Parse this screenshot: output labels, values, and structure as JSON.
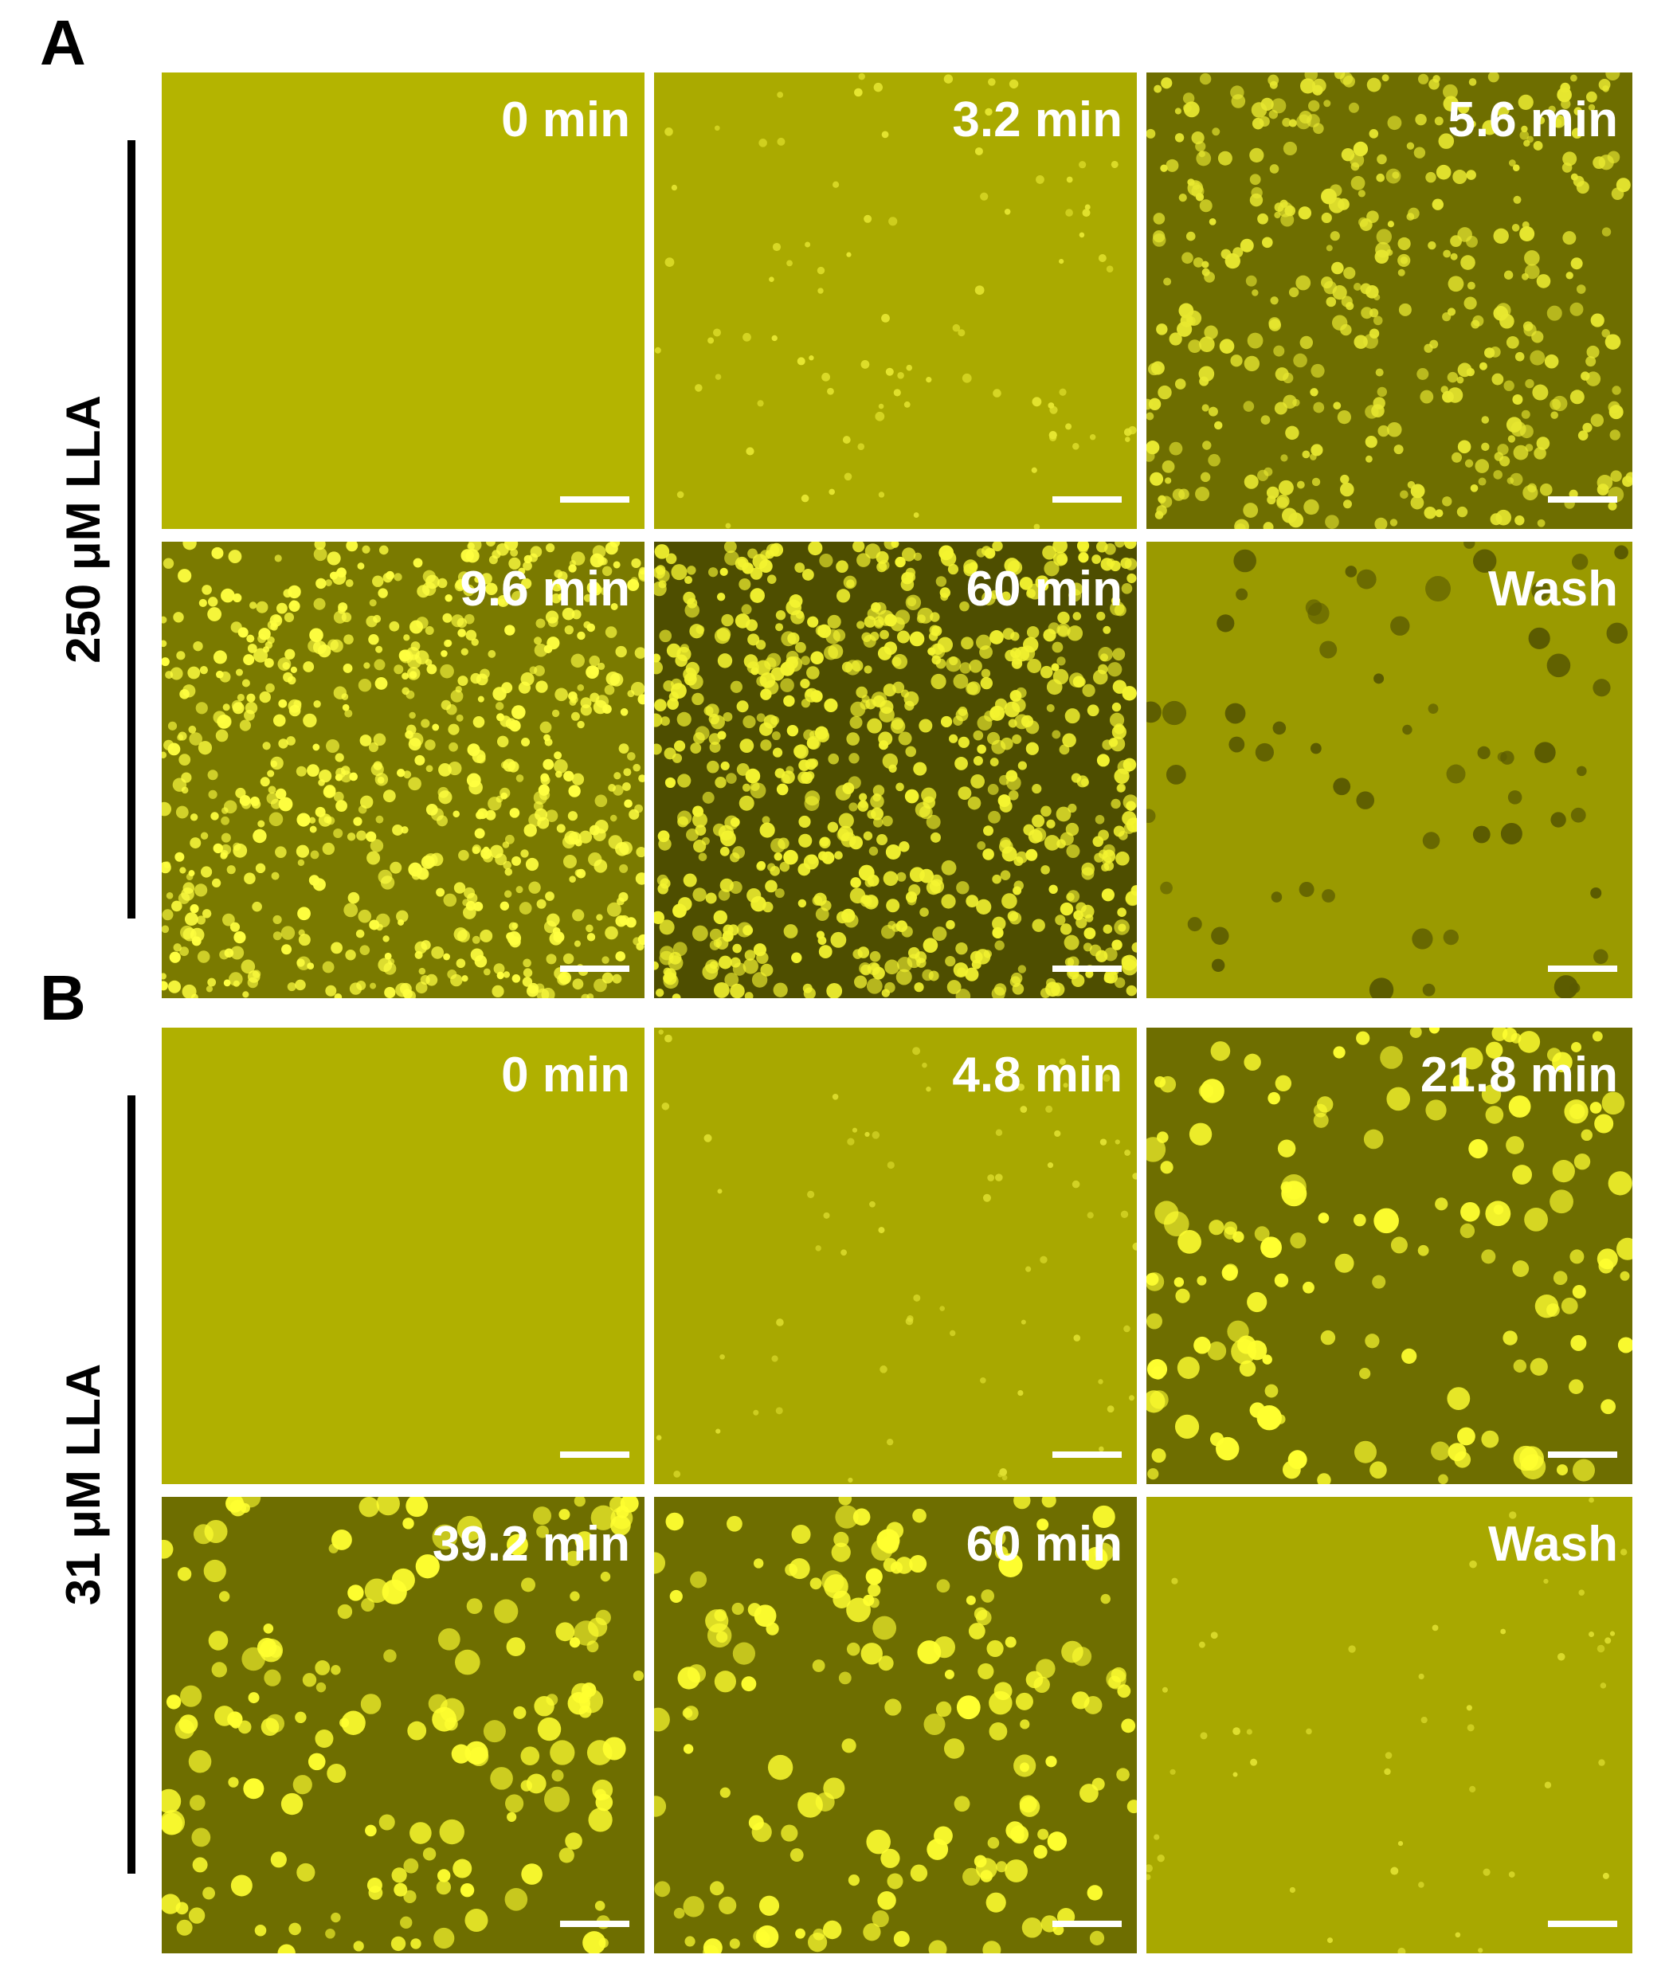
{
  "panels": [
    {
      "label": "A",
      "side_label": "250 μM LLA",
      "images": [
        {
          "label": "0 min"
        },
        {
          "label": "3.2 min"
        },
        {
          "label": "5.6 min"
        },
        {
          "label": "9.6 min"
        },
        {
          "label": "60 min"
        },
        {
          "label": "Wash"
        }
      ]
    },
    {
      "label": "B",
      "side_label": "31 μM LLA",
      "images": [
        {
          "label": "0 min"
        },
        {
          "label": "4.8 min"
        },
        {
          "label": "21.8 min"
        },
        {
          "label": "39.2 min"
        },
        {
          "label": "60 min"
        },
        {
          "label": "Wash"
        }
      ]
    }
  ]
}
